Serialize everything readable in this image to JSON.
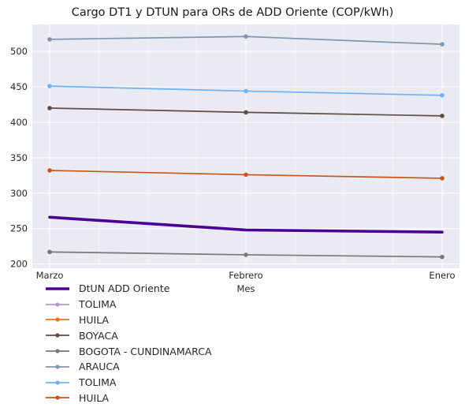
{
  "chart_data": {
    "type": "line",
    "title": "Cargo DT1 y DTUN para ORs de ADD Oriente (COP/kWh)",
    "xlabel": "Mes",
    "ylabel": "",
    "categories": [
      "Marzo",
      "Febrero",
      "Enero"
    ],
    "ylim": [
      194,
      538
    ],
    "yticks": [
      200,
      250,
      300,
      350,
      400,
      450,
      500
    ],
    "grid": true,
    "legend_position": "bottom-left, below plot",
    "series": [
      {
        "name": "DtUN ADD Oriente",
        "values": [
          266,
          248,
          245
        ],
        "color": "#4b0095",
        "thick": true,
        "markers": false
      },
      {
        "name": "TOLIMA",
        "values": [
          null,
          null,
          null
        ],
        "color": "#b498d1",
        "thick": false,
        "markers": true
      },
      {
        "name": "HUILA",
        "values": [
          null,
          null,
          null
        ],
        "color": "#e8731a",
        "thick": false,
        "markers": true
      },
      {
        "name": "BOYACA",
        "values": [
          420,
          414,
          409
        ],
        "color": "#5d4d44",
        "thick": false,
        "markers": true
      },
      {
        "name": "BOGOTA - CUNDINAMARCA",
        "values": [
          217,
          213,
          210
        ],
        "color": "#787878",
        "thick": false,
        "markers": true
      },
      {
        "name": "ARAUCA",
        "values": [
          517,
          521,
          510
        ],
        "color": "#7f96b2",
        "thick": false,
        "markers": true
      },
      {
        "name": "TOLIMA",
        "values": [
          451,
          444,
          438
        ],
        "color": "#6eb1f7",
        "thick": false,
        "markers": true
      },
      {
        "name": "HUILA",
        "values": [
          332,
          326,
          321
        ],
        "color": "#c8541a",
        "thick": false,
        "markers": true
      }
    ]
  }
}
